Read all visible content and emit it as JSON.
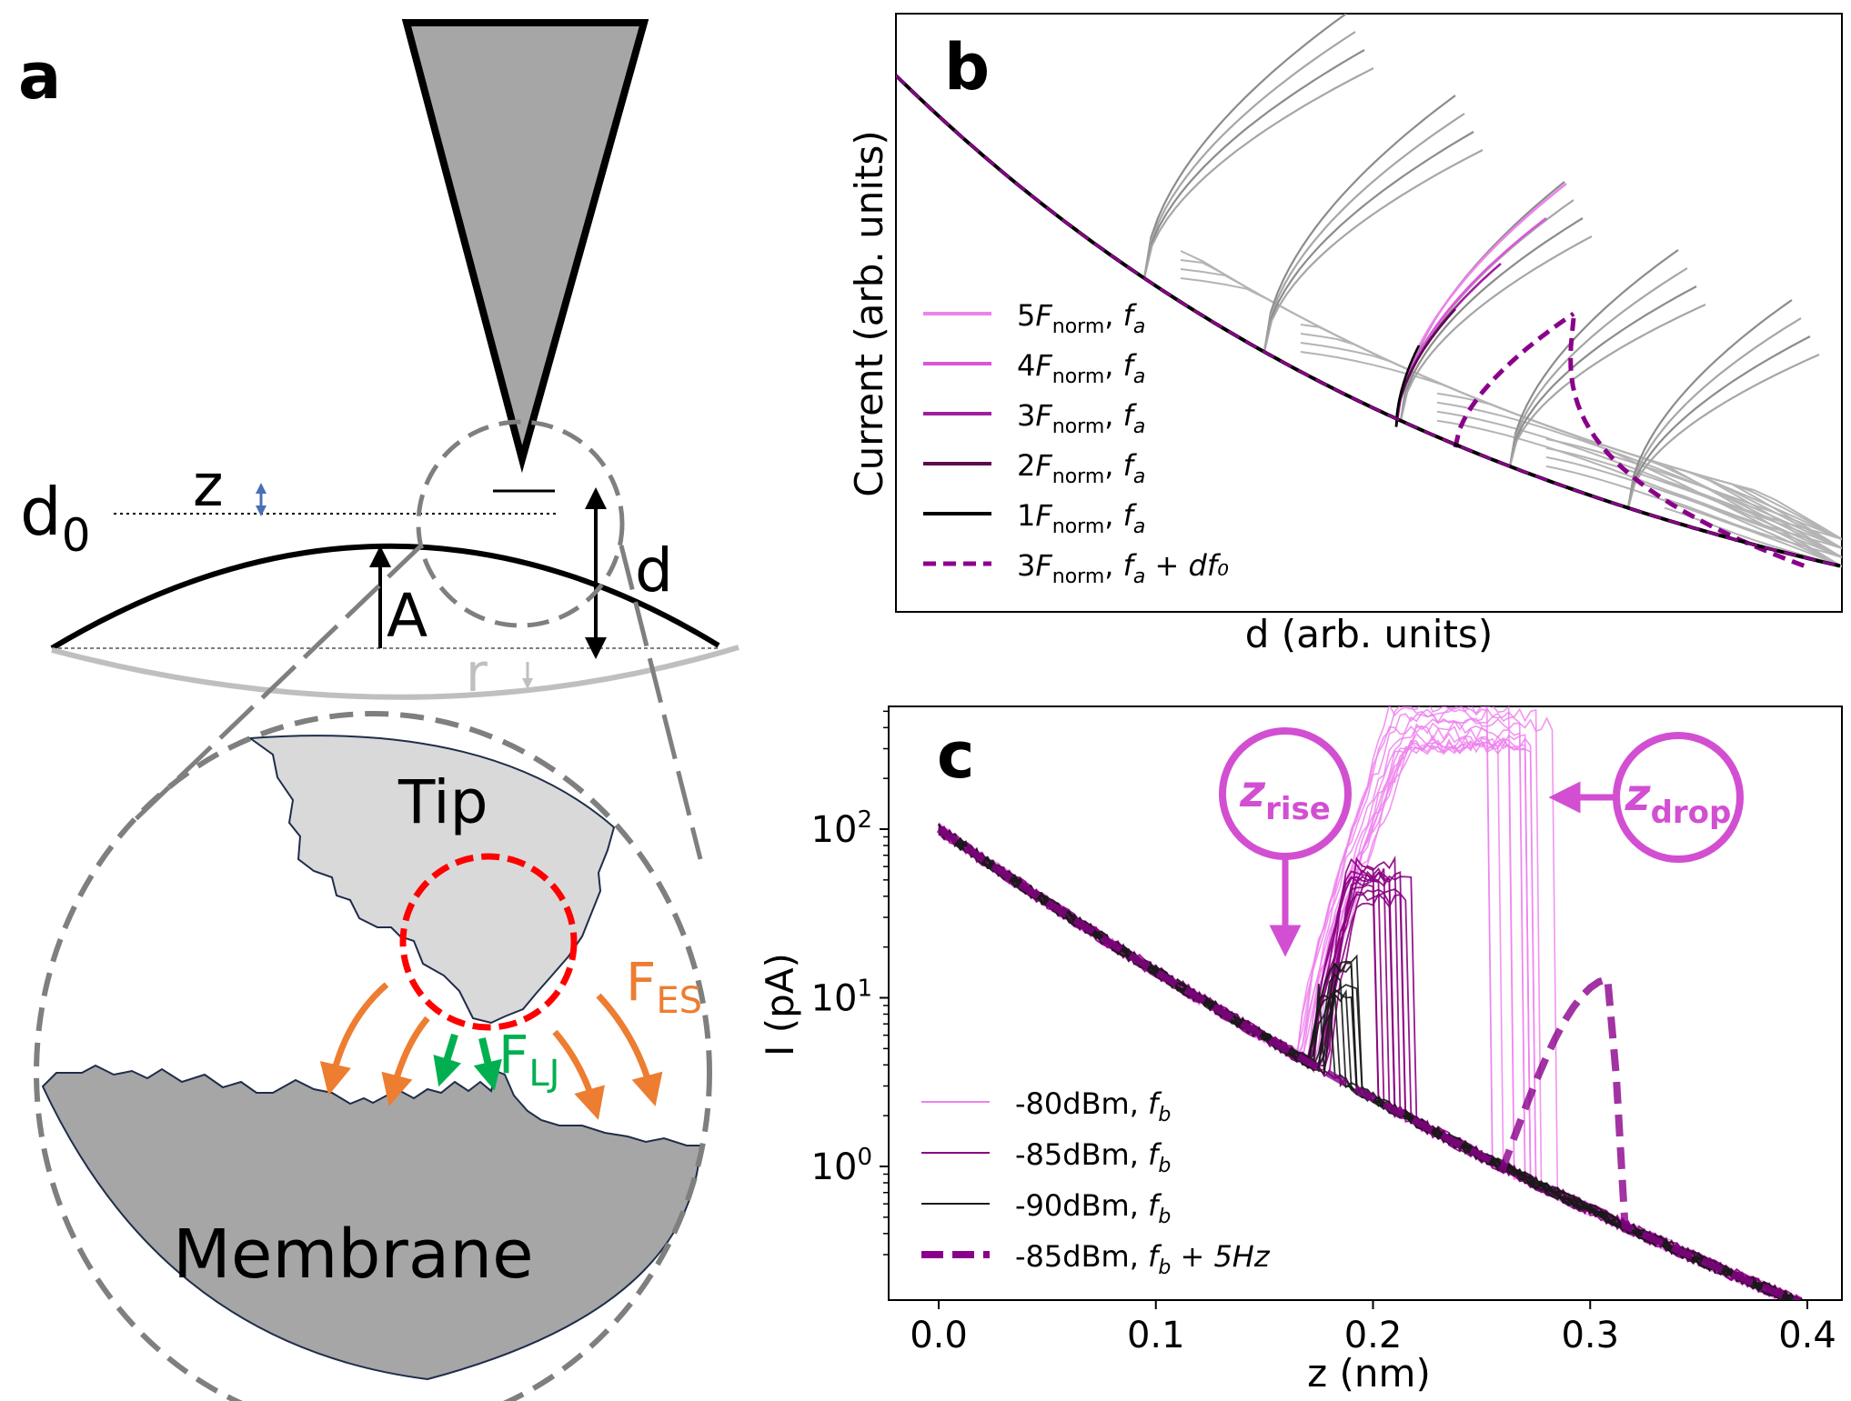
{
  "panel_a": {
    "label": "a",
    "d0_main": "d",
    "d0_sub": "0",
    "z_label": "z",
    "d_label": "d",
    "A_label": "A",
    "r_label": "r",
    "tip_label": "Tip",
    "membrane_label": "Membrane",
    "fes_main": "F",
    "fes_sub": "ES",
    "flj_main": "F",
    "flj_sub": "LJ",
    "colors": {
      "tip_fill": "#a6a6a6",
      "tip_detail_fill": "#d9d9d9",
      "es_arrow": "#ed7d31",
      "lj_arrow": "#00b050",
      "contact_circle": "#ff0000"
    }
  },
  "chart_data": [
    {
      "panel": "b",
      "type": "line",
      "title": "",
      "xlabel": "d (arb. units)",
      "ylabel": "Current (arb. units)",
      "grid": false,
      "legend_position": "center-left",
      "series": [
        {
          "name": "5F_norm, f_a",
          "color": "#ee82ee"
        },
        {
          "name": "4F_norm, f_a",
          "color": "#da55da"
        },
        {
          "name": "3F_norm, f_a",
          "color": "#a020a0"
        },
        {
          "name": "2F_norm, f_a",
          "color": "#5c0a4e"
        },
        {
          "name": "1F_norm, f_a",
          "color": "#000000"
        },
        {
          "name": "3F_norm, f_a + df_0",
          "color": "#8b008b",
          "dashed": true
        }
      ],
      "legend": [
        {
          "coef": "5",
          "label_main": "F",
          "label_sub": "norm",
          "suffix_main": ", ",
          "suffix_italic": "f",
          "suffix_sub": "a",
          "extra": ""
        },
        {
          "coef": "4",
          "label_main": "F",
          "label_sub": "norm",
          "suffix_main": ", ",
          "suffix_italic": "f",
          "suffix_sub": "a",
          "extra": ""
        },
        {
          "coef": "3",
          "label_main": "F",
          "label_sub": "norm",
          "suffix_main": ", ",
          "suffix_italic": "f",
          "suffix_sub": "a",
          "extra": ""
        },
        {
          "coef": "2",
          "label_main": "F",
          "label_sub": "norm",
          "suffix_main": ", ",
          "suffix_italic": "f",
          "suffix_sub": "a",
          "extra": ""
        },
        {
          "coef": "1",
          "label_main": "F",
          "label_sub": "norm",
          "suffix_main": ", ",
          "suffix_italic": "f",
          "suffix_sub": "a",
          "extra": ""
        },
        {
          "coef": "3",
          "label_main": "F",
          "label_sub": "norm",
          "suffix_main": ", ",
          "suffix_italic": "f",
          "suffix_sub": "a",
          "extra": " + df₀"
        }
      ],
      "label": "b"
    },
    {
      "panel": "c",
      "type": "line",
      "title": "",
      "xlabel": "z (nm)",
      "ylabel": "I (pA)",
      "y_scale": "log",
      "xlim": [
        -0.02,
        0.42
      ],
      "ylim": [
        0.2,
        600
      ],
      "x_ticks": [
        "0.0",
        "0.1",
        "0.2",
        "0.3",
        "0.4"
      ],
      "y_ticks": [
        {
          "base": "10",
          "exp": "2",
          "value": 100
        },
        {
          "base": "10",
          "exp": "1",
          "value": 10
        },
        {
          "base": "10",
          "exp": "0",
          "value": 1
        }
      ],
      "grid": false,
      "legend_position": "lower-left",
      "series": [
        {
          "name": "-80dBm, f_b",
          "color": "#ee82ee",
          "z_rise": 0.17,
          "peak_pA": 400,
          "z_drop": 0.27
        },
        {
          "name": "-85dBm, f_b",
          "color": "#8b0080",
          "z_rise": 0.175,
          "peak_pA": 50,
          "z_drop": 0.21
        },
        {
          "name": "-90dBm, f_b",
          "color": "#1a1a1a",
          "z_rise": 0.175,
          "peak_pA": 13,
          "z_drop": 0.185
        },
        {
          "name": "-85dBm, f_b + 5Hz",
          "color": "#8b008b",
          "dashed": true,
          "z_rise": 0.27,
          "peak_pA": 13,
          "z_drop": 0.31
        }
      ],
      "legend": [
        {
          "main": "-80dBm, ",
          "italic": "f",
          "sub": "b",
          "extra": ""
        },
        {
          "main": "-85dBm, ",
          "italic": "f",
          "sub": "b",
          "extra": ""
        },
        {
          "main": "-90dBm, ",
          "italic": "f",
          "sub": "b",
          "extra": ""
        },
        {
          "main": "-85dBm, ",
          "italic": "f",
          "sub": "b",
          "extra": " + 5Hz"
        }
      ],
      "annotations": [
        {
          "main": "z",
          "sub": "rise",
          "color": "#d24fd2"
        },
        {
          "main": "z",
          "sub": "drop",
          "color": "#d24fd2"
        }
      ],
      "label": "c"
    }
  ]
}
